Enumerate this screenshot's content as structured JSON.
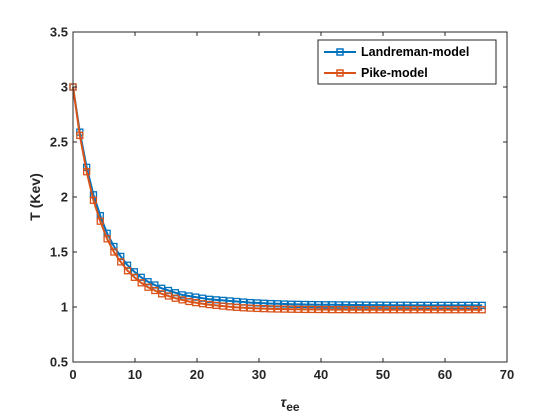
{
  "chart_data": {
    "type": "line",
    "xlabel": "τ",
    "xlabel_sub": "ee",
    "ylabel": "T (Kev)",
    "xlim": [
      0,
      70
    ],
    "ylim": [
      0.5,
      3.5
    ],
    "x_ticks": [
      0,
      10,
      20,
      30,
      40,
      50,
      60,
      70
    ],
    "y_ticks": [
      0.5,
      1,
      1.5,
      2,
      2.5,
      3,
      3.5
    ],
    "x_tick_labels": [
      "0",
      "10",
      "20",
      "30",
      "40",
      "50",
      "60",
      "70"
    ],
    "y_tick_labels": [
      "0.5",
      "1",
      "1.5",
      "2",
      "2.5",
      "3",
      "3.5"
    ],
    "legend_position": "top-right",
    "grid": false,
    "series": [
      {
        "name": "Landreman-model",
        "color": "#0072BD",
        "marker": "square",
        "x": [
          0,
          1.1,
          2.2,
          3.3,
          4.4,
          5.5,
          6.6,
          7.7,
          8.8,
          9.9,
          11,
          12.1,
          13.2,
          14.3,
          15.4,
          16.5,
          17.6,
          18.7,
          19.8,
          20.9,
          22,
          23.1,
          24.2,
          25.3,
          26.4,
          27.5,
          28.6,
          29.7,
          30.8,
          31.9,
          33,
          34.1,
          35.2,
          36.3,
          37.4,
          38.5,
          39.6,
          40.7,
          41.8,
          42.9,
          44,
          45.1,
          46.2,
          47.3,
          48.4,
          49.5,
          50.6,
          51.7,
          52.8,
          53.9,
          55,
          56.1,
          57.2,
          58.3,
          59.4,
          60.5,
          61.6,
          62.7,
          63.8,
          64.9,
          66
        ],
        "y": [
          3.0,
          2.59,
          2.27,
          2.02,
          1.83,
          1.67,
          1.55,
          1.46,
          1.38,
          1.32,
          1.27,
          1.23,
          1.2,
          1.17,
          1.15,
          1.13,
          1.11,
          1.1,
          1.09,
          1.08,
          1.07,
          1.065,
          1.06,
          1.055,
          1.05,
          1.045,
          1.04,
          1.037,
          1.034,
          1.031,
          1.029,
          1.027,
          1.025,
          1.024,
          1.023,
          1.022,
          1.021,
          1.02,
          1.02,
          1.019,
          1.019,
          1.018,
          1.018,
          1.017,
          1.017,
          1.017,
          1.016,
          1.016,
          1.016,
          1.016,
          1.015,
          1.015,
          1.015,
          1.015,
          1.015,
          1.015,
          1.015,
          1.015,
          1.015,
          1.015,
          1.015
        ]
      },
      {
        "name": "Pike-model",
        "color": "#D95319",
        "marker": "square",
        "x": [
          0,
          1.1,
          2.2,
          3.3,
          4.4,
          5.5,
          6.6,
          7.7,
          8.8,
          9.9,
          11,
          12.1,
          13.2,
          14.3,
          15.4,
          16.5,
          17.6,
          18.7,
          19.8,
          20.9,
          22,
          23.1,
          24.2,
          25.3,
          26.4,
          27.5,
          28.6,
          29.7,
          30.8,
          31.9,
          33,
          34.1,
          35.2,
          36.3,
          37.4,
          38.5,
          39.6,
          40.7,
          41.8,
          42.9,
          44,
          45.1,
          46.2,
          47.3,
          48.4,
          49.5,
          50.6,
          51.7,
          52.8,
          53.9,
          55,
          56.1,
          57.2,
          58.3,
          59.4,
          60.5,
          61.6,
          62.7,
          63.8,
          64.9,
          66
        ],
        "y": [
          3.0,
          2.56,
          2.23,
          1.97,
          1.78,
          1.62,
          1.5,
          1.41,
          1.33,
          1.27,
          1.22,
          1.18,
          1.15,
          1.12,
          1.1,
          1.08,
          1.065,
          1.05,
          1.04,
          1.03,
          1.022,
          1.015,
          1.008,
          1.002,
          0.997,
          0.993,
          0.99,
          0.987,
          0.985,
          0.983,
          0.982,
          0.981,
          0.98,
          0.979,
          0.978,
          0.978,
          0.977,
          0.977,
          0.976,
          0.976,
          0.976,
          0.975,
          0.975,
          0.975,
          0.975,
          0.975,
          0.975,
          0.975,
          0.975,
          0.975,
          0.975,
          0.975,
          0.975,
          0.975,
          0.975,
          0.975,
          0.975,
          0.975,
          0.975,
          0.975,
          0.975
        ]
      }
    ]
  }
}
